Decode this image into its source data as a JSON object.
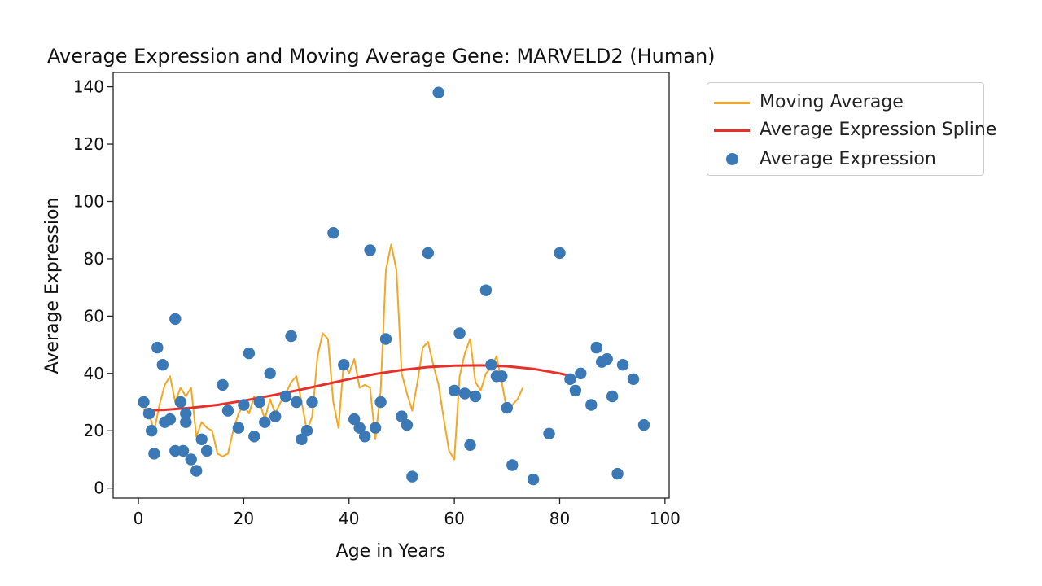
{
  "chart_data": {
    "type": "scatter",
    "title": "Average Expression and Moving Average Gene: MARVELD2 (Human)",
    "xlabel": "Age in Years",
    "ylabel": "Average Expression",
    "xlim": [
      -4.8,
      100.8
    ],
    "ylim": [
      -3.5,
      145
    ],
    "xticks": [
      0,
      20,
      40,
      60,
      80,
      100
    ],
    "yticks": [
      0,
      20,
      40,
      60,
      80,
      100,
      120,
      140
    ],
    "grid": false,
    "legend_position": "outside-top-right",
    "series": [
      {
        "name": "Moving Average",
        "type": "line",
        "color": "#f5a623",
        "points": [
          [
            1,
            29
          ],
          [
            2,
            26
          ],
          [
            3,
            20
          ],
          [
            4,
            29
          ],
          [
            5,
            36
          ],
          [
            6,
            39
          ],
          [
            7,
            30
          ],
          [
            8,
            35
          ],
          [
            9,
            32
          ],
          [
            10,
            35
          ],
          [
            11,
            18
          ],
          [
            12,
            23
          ],
          [
            13,
            21
          ],
          [
            14,
            20
          ],
          [
            15,
            12
          ],
          [
            16,
            11
          ],
          [
            17,
            12
          ],
          [
            18,
            20
          ],
          [
            19,
            26
          ],
          [
            20,
            29
          ],
          [
            21,
            26
          ],
          [
            22,
            32
          ],
          [
            23,
            30
          ],
          [
            24,
            24
          ],
          [
            25,
            31
          ],
          [
            26,
            26
          ],
          [
            27,
            30
          ],
          [
            28,
            33
          ],
          [
            29,
            37
          ],
          [
            30,
            39
          ],
          [
            31,
            30
          ],
          [
            32,
            20
          ],
          [
            33,
            25
          ],
          [
            34,
            46
          ],
          [
            35,
            54
          ],
          [
            36,
            52
          ],
          [
            37,
            30
          ],
          [
            38,
            21
          ],
          [
            39,
            44
          ],
          [
            40,
            40
          ],
          [
            41,
            45
          ],
          [
            42,
            35
          ],
          [
            43,
            36
          ],
          [
            44,
            35
          ],
          [
            45,
            17
          ],
          [
            46,
            34
          ],
          [
            47,
            76
          ],
          [
            48,
            85
          ],
          [
            49,
            76
          ],
          [
            50,
            40
          ],
          [
            51,
            33
          ],
          [
            52,
            27
          ],
          [
            53,
            37
          ],
          [
            54,
            49
          ],
          [
            55,
            51
          ],
          [
            56,
            43
          ],
          [
            57,
            36
          ],
          [
            58,
            24
          ],
          [
            59,
            13
          ],
          [
            60,
            10
          ],
          [
            61,
            39
          ],
          [
            62,
            47
          ],
          [
            63,
            52
          ],
          [
            64,
            37
          ],
          [
            65,
            34
          ],
          [
            66,
            40
          ],
          [
            67,
            42
          ],
          [
            68,
            46
          ],
          [
            69,
            37
          ],
          [
            70,
            27
          ],
          [
            71,
            29
          ],
          [
            72,
            31
          ],
          [
            73,
            35
          ]
        ]
      },
      {
        "name": "Average Expression Spline",
        "type": "line",
        "color": "#e8302a",
        "points": [
          [
            1,
            27
          ],
          [
            5,
            27.3
          ],
          [
            10,
            28
          ],
          [
            15,
            29
          ],
          [
            20,
            30.5
          ],
          [
            25,
            32.2
          ],
          [
            30,
            34
          ],
          [
            35,
            36
          ],
          [
            40,
            38
          ],
          [
            45,
            39.8
          ],
          [
            50,
            41.2
          ],
          [
            55,
            42.2
          ],
          [
            60,
            42.7
          ],
          [
            65,
            42.8
          ],
          [
            70,
            42.5
          ],
          [
            75,
            41.6
          ],
          [
            80,
            40
          ],
          [
            82,
            39.2
          ]
        ]
      },
      {
        "name": "Average Expression",
        "type": "scatter",
        "color": "#3a78b6",
        "points": [
          [
            1,
            30
          ],
          [
            2,
            26
          ],
          [
            2.5,
            20
          ],
          [
            3,
            12
          ],
          [
            3.6,
            49
          ],
          [
            4.6,
            43
          ],
          [
            5,
            23
          ],
          [
            6,
            24
          ],
          [
            7,
            59
          ],
          [
            7,
            13
          ],
          [
            8,
            30
          ],
          [
            8.5,
            13
          ],
          [
            9,
            26
          ],
          [
            9,
            23
          ],
          [
            10,
            10
          ],
          [
            11,
            6
          ],
          [
            12,
            17
          ],
          [
            13,
            13
          ],
          [
            16,
            36
          ],
          [
            17,
            27
          ],
          [
            19,
            21
          ],
          [
            20,
            29
          ],
          [
            21,
            47
          ],
          [
            22,
            18
          ],
          [
            23,
            30
          ],
          [
            24,
            23
          ],
          [
            25,
            40
          ],
          [
            26,
            25
          ],
          [
            28,
            32
          ],
          [
            29,
            53
          ],
          [
            30,
            30
          ],
          [
            31,
            17
          ],
          [
            32,
            20
          ],
          [
            33,
            30
          ],
          [
            37,
            89
          ],
          [
            39,
            43
          ],
          [
            41,
            24
          ],
          [
            42,
            21
          ],
          [
            43,
            18
          ],
          [
            44,
            83
          ],
          [
            45,
            21
          ],
          [
            46,
            30
          ],
          [
            47,
            52
          ],
          [
            50,
            25
          ],
          [
            51,
            22
          ],
          [
            52,
            4
          ],
          [
            55,
            82
          ],
          [
            57,
            138
          ],
          [
            60,
            34
          ],
          [
            61,
            54
          ],
          [
            62,
            33
          ],
          [
            63,
            15
          ],
          [
            64,
            32
          ],
          [
            66,
            69
          ],
          [
            67,
            43
          ],
          [
            68,
            39
          ],
          [
            69,
            39
          ],
          [
            70,
            28
          ],
          [
            71,
            8
          ],
          [
            75,
            3
          ],
          [
            78,
            19
          ],
          [
            80,
            82
          ],
          [
            82,
            38
          ],
          [
            83,
            34
          ],
          [
            84,
            40
          ],
          [
            86,
            29
          ],
          [
            87,
            49
          ],
          [
            88,
            44
          ],
          [
            89,
            45
          ],
          [
            90,
            32
          ],
          [
            91,
            5
          ],
          [
            92,
            43
          ],
          [
            94,
            38
          ],
          [
            96,
            22
          ]
        ]
      }
    ]
  }
}
